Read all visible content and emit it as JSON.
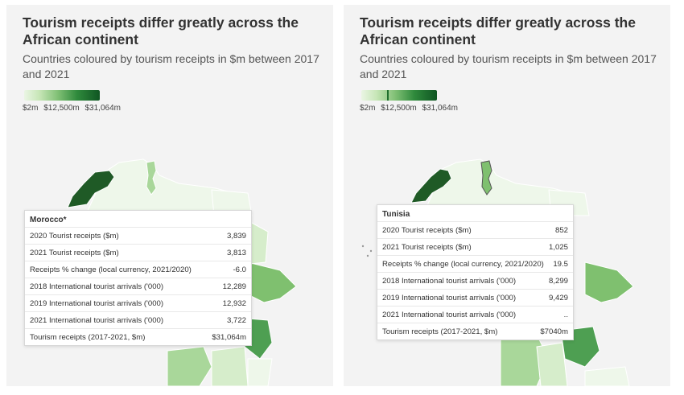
{
  "panels": [
    {
      "title": "Tourism receipts differ greatly across the African continent",
      "subtitle": "Countries coloured by tourism receipts in $m between 2017 and 2021",
      "legend": {
        "labels": [
          "$2m",
          "$12,500m",
          "$31,064m"
        ]
      },
      "tooltip": {
        "country": "Morocco*",
        "rows": [
          {
            "label": "2020 Tourist receipts ($m)",
            "value": "3,839"
          },
          {
            "label": "2021 Tourist receipts ($m)",
            "value": "3,813"
          },
          {
            "label": "Receipts % change (local currency, 2021/2020)",
            "value": "-6.0"
          },
          {
            "label": "2018 International tourist arrivals ('000)",
            "value": "12,289"
          },
          {
            "label": "2019 International tourist arrivals ('000)",
            "value": "12,932"
          },
          {
            "label": "2021 International tourist arrivals ('000)",
            "value": "3,722"
          },
          {
            "label": "Tourism receipts (2017-2021, $m)",
            "value": "$31,064m"
          }
        ]
      }
    },
    {
      "title": "Tourism receipts differ greatly across the African continent",
      "subtitle": "Countries coloured by tourism receipts in $m between 2017 and 2021",
      "legend": {
        "labels": [
          "$2m",
          "$12,500m",
          "$31,064m"
        ]
      },
      "tooltip": {
        "country": "Tunisia",
        "rows": [
          {
            "label": "2020 Tourist receipts ($m)",
            "value": "852"
          },
          {
            "label": "2021 Tourist receipts ($m)",
            "value": "1,025"
          },
          {
            "label": "Receipts % change (local currency, 2021/2020)",
            "value": "19.5"
          },
          {
            "label": "2018 International tourist arrivals ('000)",
            "value": "8,299"
          },
          {
            "label": "2019 International tourist arrivals ('000)",
            "value": "9,429"
          },
          {
            "label": "2021 International tourist arrivals ('000)",
            "value": ".."
          },
          {
            "label": "Tourism receipts (2017-2021, $m)",
            "value": "$7040m"
          }
        ]
      }
    }
  ],
  "colors": {
    "panel_bg": "#f3f3f3",
    "title": "#333333",
    "morocco": "#1f5a26",
    "tunisia": "#7fc06f",
    "very_light": "#eef7ea",
    "light": "#d6edcb",
    "mid": "#a9d79a",
    "dark_mid": "#4e9f52"
  }
}
